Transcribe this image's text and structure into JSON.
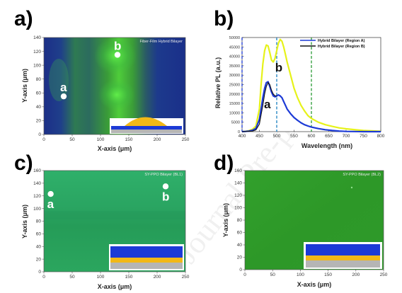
{
  "panel_labels": [
    "a)",
    "b)",
    "c)",
    "d)"
  ],
  "watermark": "Journal Pre-proof",
  "colors": {
    "map_a_dark": "#1b2f86",
    "map_a_green": "#4fdc3a",
    "map_c_base": "#2aa260",
    "map_d_base": "#2e9b2a",
    "spec_blue": "#1c3ad6",
    "spec_yellow": "#e6f21a",
    "spec_black": "#111111"
  },
  "chart_data": [
    {
      "type": "heatmap",
      "panel": "a)",
      "title": "Fiber-Film Hybrid Bilayer",
      "xlabel": "X-axis (μm)",
      "ylabel": "Y-axis (μm)",
      "xlim": [
        0,
        250
      ],
      "ylim": [
        0,
        140
      ],
      "xticks": [
        0,
        50,
        100,
        150,
        200,
        250
      ],
      "yticks": [
        0,
        20,
        40,
        60,
        80,
        100,
        120,
        140
      ],
      "points": [
        {
          "label": "a",
          "x": 35,
          "y": 55
        },
        {
          "label": "b",
          "x": 130,
          "y": 115
        }
      ],
      "inset": "fiber-on-film"
    },
    {
      "type": "line",
      "panel": "b)",
      "title": "",
      "xlabel": "Wavelength (nm)",
      "ylabel": "Relative PL (a.u.)",
      "xlim": [
        400,
        800
      ],
      "ylim": [
        0,
        50000
      ],
      "xticks": [
        400,
        450,
        500,
        550,
        600,
        650,
        700,
        750,
        800
      ],
      "yticks": [
        0,
        5000,
        10000,
        15000,
        20000,
        25000,
        30000,
        35000,
        40000,
        45000,
        50000
      ],
      "series": [
        {
          "name": "Hybrid Bilayer (Region A)",
          "color": "#1c3ad6",
          "x": [
            400,
            410,
            420,
            430,
            440,
            450,
            455,
            460,
            465,
            470,
            475,
            480,
            485,
            490,
            495,
            500,
            505,
            510,
            515,
            520,
            525,
            530,
            540,
            550,
            560,
            570,
            580,
            590,
            600,
            620,
            640,
            660,
            680,
            700,
            750,
            800
          ],
          "y": [
            0,
            100,
            300,
            700,
            1700,
            6500,
            12000,
            18000,
            23000,
            26000,
            26500,
            24000,
            21000,
            19000,
            18500,
            19000,
            19500,
            19000,
            18000,
            16000,
            14000,
            12000,
            9500,
            7500,
            6000,
            4700,
            3700,
            3000,
            2400,
            1600,
            1000,
            600,
            300,
            100,
            0,
            0
          ]
        },
        {
          "name": "Hybrid Bilayer (Region B)",
          "color": "#e6f21a",
          "x": [
            400,
            410,
            420,
            430,
            440,
            450,
            455,
            460,
            465,
            470,
            475,
            480,
            485,
            490,
            495,
            500,
            505,
            510,
            515,
            520,
            525,
            530,
            540,
            550,
            560,
            570,
            580,
            590,
            600,
            620,
            640,
            660,
            680,
            700,
            750,
            800
          ],
          "y": [
            0,
            150,
            500,
            1200,
            3000,
            12000,
            25000,
            36000,
            43000,
            46000,
            45500,
            42000,
            38000,
            37000,
            39000,
            43000,
            47000,
            49000,
            48000,
            45000,
            41000,
            37000,
            30000,
            23000,
            18000,
            14000,
            11000,
            8500,
            7000,
            5000,
            3700,
            2800,
            2000,
            1500,
            600,
            200
          ]
        }
      ],
      "black_curve": {
        "x": [
          400,
          430,
          440,
          450,
          455,
          460,
          465,
          470,
          475,
          480,
          485,
          490,
          495,
          500
        ],
        "y": [
          0,
          300,
          900,
          4000,
          9000,
          14000,
          20000,
          24000,
          26000,
          25000,
          22000,
          20000,
          19000,
          19000
        ]
      },
      "markers": [
        {
          "x": 400,
          "style": "dashed",
          "color": "#1c3ad6"
        },
        {
          "x": 500,
          "style": "dashed",
          "color": "#1a7fc0"
        },
        {
          "x": 600,
          "style": "dashed",
          "color": "#2a9a35"
        }
      ],
      "annotations": [
        {
          "text": "a",
          "x": 473,
          "y": 12500
        },
        {
          "text": "b",
          "x": 506,
          "y": 32000
        }
      ],
      "legend_position": "top-right"
    },
    {
      "type": "heatmap",
      "panel": "c)",
      "title": "SY-PPO Bilayer (BL1)",
      "xlabel": "X-axis (μm)",
      "ylabel": "Y-axis (μm)",
      "xlim": [
        0,
        250
      ],
      "ylim": [
        0,
        160
      ],
      "xticks": [
        0,
        50,
        100,
        150,
        200,
        250
      ],
      "yticks": [
        0,
        20,
        40,
        60,
        80,
        100,
        120,
        140,
        160
      ],
      "points": [
        {
          "label": "a",
          "x": 12,
          "y": 123
        },
        {
          "label": "b",
          "x": 215,
          "y": 135
        }
      ],
      "inset": "film-bilayer"
    },
    {
      "type": "heatmap",
      "panel": "d)",
      "title": "SY-PPO Bilayer (BL2)",
      "xlabel": "X-axis (μm)",
      "ylabel": "Y-axis (μm)",
      "xlim": [
        0,
        250
      ],
      "ylim": [
        0,
        160
      ],
      "xticks": [
        0,
        50,
        100,
        150,
        200,
        250
      ],
      "yticks": [
        0,
        20,
        40,
        60,
        80,
        100,
        120,
        140,
        160
      ],
      "points": [],
      "inset": "film-bilayer"
    }
  ]
}
